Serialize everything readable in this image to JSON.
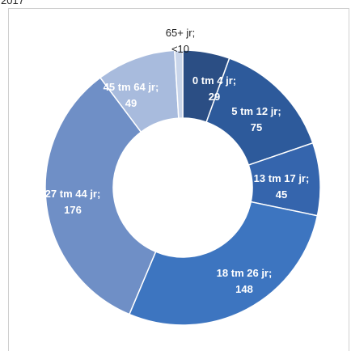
{
  "header": {
    "year": "2017"
  },
  "chart_data": {
    "type": "pie",
    "variant": "donut",
    "categories": [
      "0 tm 4 jr",
      "5 tm 12 jr",
      "13 tm 17 jr",
      "18 tm 26 jr",
      "27 tm 44 jr",
      "45 tm 64 jr",
      "65+ jr"
    ],
    "values": [
      29,
      75,
      45,
      148,
      176,
      49,
      5
    ],
    "value_labels": [
      "29",
      "75",
      "45",
      "148",
      "176",
      "49",
      "<10"
    ],
    "colors": [
      "#2b4e84",
      "#2d5a9b",
      "#3565ad",
      "#3d75c0",
      "#6f8fc6",
      "#a8bbdd",
      "#c9d5ea"
    ],
    "label_colors": [
      "#ffffff",
      "#ffffff",
      "#ffffff",
      "#ffffff",
      "#ffffff",
      "#ffffff",
      "#222222"
    ],
    "title": "",
    "legend": "none",
    "start_angle_deg": 0,
    "direction": "clockwise"
  }
}
